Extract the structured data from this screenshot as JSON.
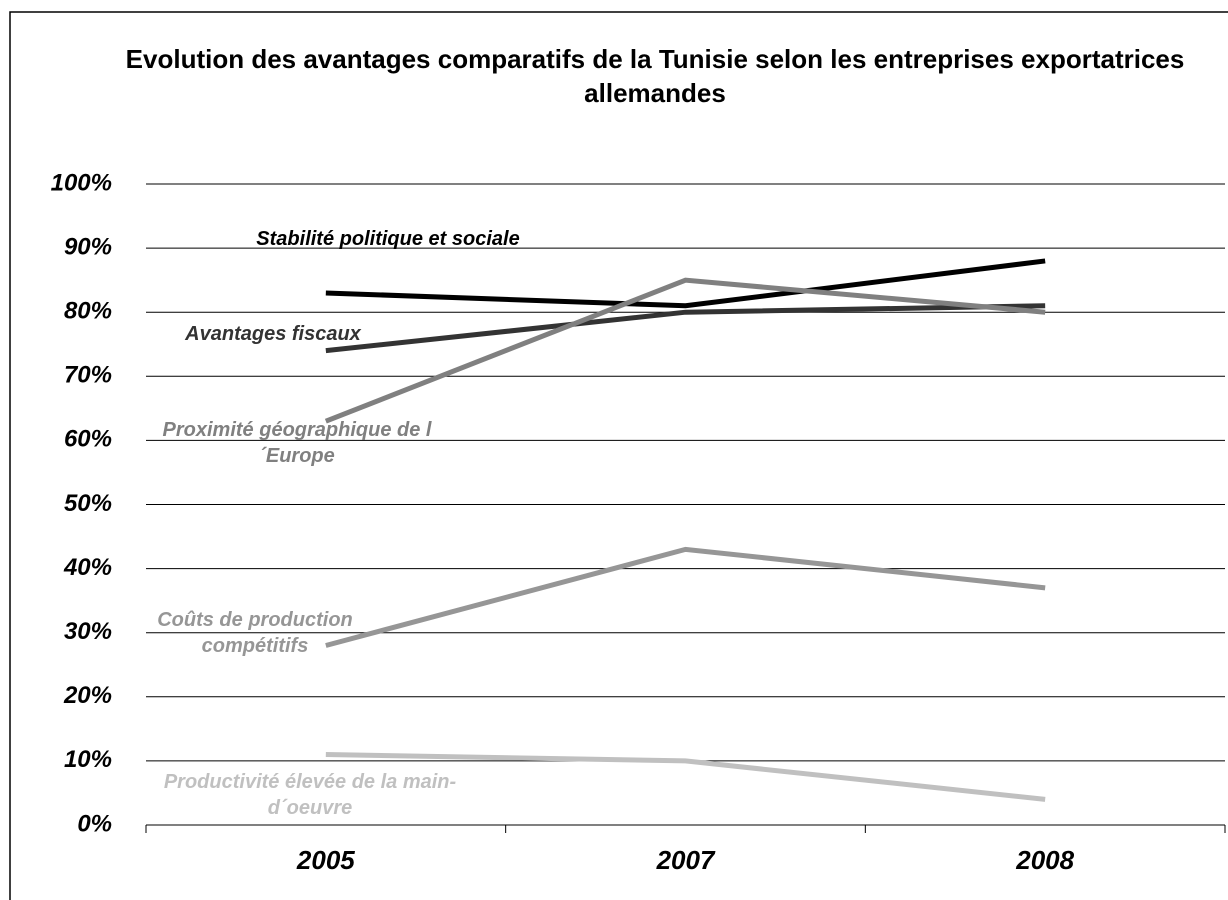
{
  "chart_data": {
    "type": "line",
    "title": "Evolution des avantages comparatifs de la Tunisie selon les entreprises exportatrices allemandes",
    "categories": [
      "2005",
      "2007",
      "2008"
    ],
    "series": [
      {
        "name": "Stabilité politique et sociale",
        "color": "#000000",
        "values": [
          83,
          81,
          88
        ]
      },
      {
        "name": "Avantages fiscaux",
        "color": "#333333",
        "values": [
          74,
          80,
          81
        ]
      },
      {
        "name": "Proximité géographique de l´Europe",
        "color": "#808080",
        "values": [
          63,
          85,
          80
        ]
      },
      {
        "name": "Coûts de production compétitifs",
        "color": "#969696",
        "values": [
          28,
          43,
          37
        ]
      },
      {
        "name": "Productivité élevée de la main-d´oeuvre",
        "color": "#c0c0c0",
        "values": [
          11,
          10,
          4
        ]
      }
    ],
    "ylim": [
      0,
      100
    ],
    "yticks": [
      {
        "value": 0,
        "label": "0%"
      },
      {
        "value": 10,
        "label": "10%"
      },
      {
        "value": 20,
        "label": "20%"
      },
      {
        "value": 30,
        "label": "30%"
      },
      {
        "value": 40,
        "label": "40%"
      },
      {
        "value": 50,
        "label": "50%"
      },
      {
        "value": 60,
        "label": "60%"
      },
      {
        "value": 70,
        "label": "70%"
      },
      {
        "value": 80,
        "label": "80%"
      },
      {
        "value": 90,
        "label": "90%"
      },
      {
        "value": 100,
        "label": "100%"
      }
    ],
    "grid": true
  }
}
